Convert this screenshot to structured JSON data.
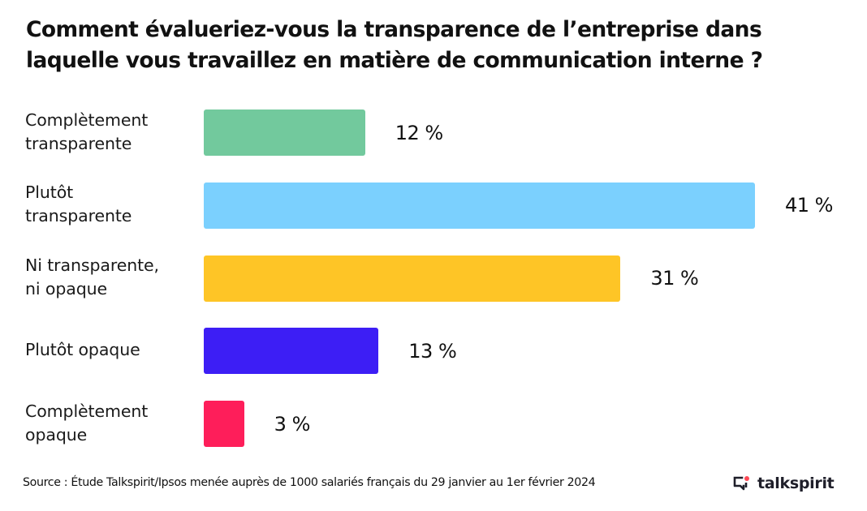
{
  "chart_data": {
    "type": "bar",
    "orientation": "horizontal",
    "title": "Comment évalueriez-vous la transparence de l’entreprise dans laquelle vous travaillez en matière de communication interne ?",
    "title_lines": [
      "Comment évalueriez-vous la transparence de l’entreprise dans",
      "laquelle vous travaillez en matière de communication interne ?"
    ],
    "xlabel": "",
    "ylabel": "",
    "unit": "%",
    "xlim": [
      0,
      41
    ],
    "grid": false,
    "legend": "none",
    "categories": [
      "Complètement transparente",
      "Plutôt transparente",
      "Ni transparente, ni opaque",
      "Plutôt opaque",
      "Complètement opaque"
    ],
    "category_lines": [
      [
        "Complètement",
        "transparente"
      ],
      [
        "Plutôt",
        "transparente"
      ],
      [
        "Ni transparente,",
        "ni opaque"
      ],
      [
        "Plutôt opaque"
      ],
      [
        "Complètement",
        "opaque"
      ]
    ],
    "values": [
      12,
      41,
      31,
      13,
      3
    ],
    "value_labels": [
      "12 %",
      "41 %",
      "31 %",
      "13 %",
      "3 %"
    ],
    "colors": [
      "#72c99d",
      "#7bd0fe",
      "#fec526",
      "#3d1ef5",
      "#fe1e5a"
    ]
  },
  "footer": {
    "source": "Source : Étude Talkspirit/Ipsos menée auprès de 1000 salariés français du 29 janvier au 1er février 2024",
    "brand_name": "talkspirit",
    "brand_icon": "talkspirit-logo-icon",
    "brand_accent_color": "#fe4a57",
    "brand_text_color": "#1f1f2a"
  }
}
